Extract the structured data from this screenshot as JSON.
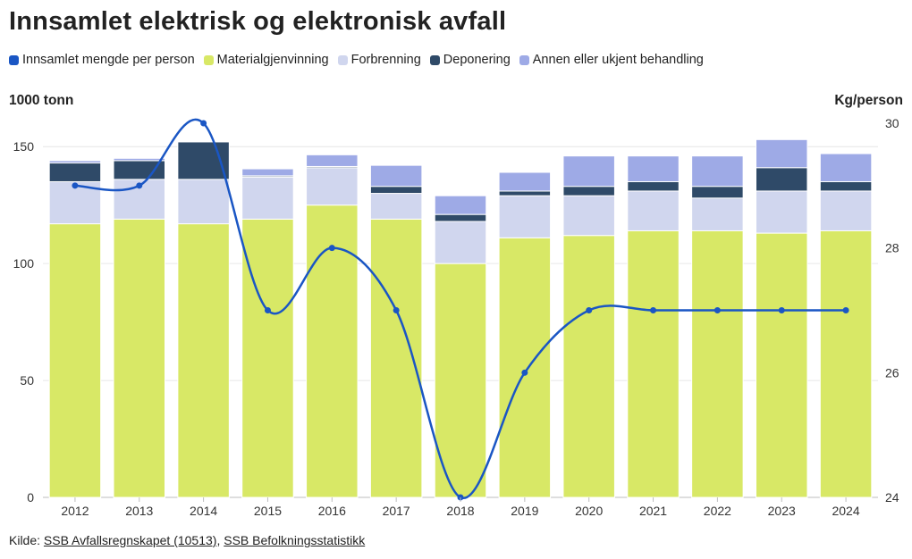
{
  "title": "Innsamlet elektrisk og elektronisk avfall",
  "source": {
    "prefix": "Kilde: ",
    "links": [
      "SSB Avfallsregnskapet (10513)",
      "SSB Befolkningsstatistikk"
    ],
    "separator": ", "
  },
  "colors": {
    "line": "#1a56c4",
    "materialgjenvinning": "#d8e866",
    "forbrenning": "#d0d6ee",
    "deponering": "#2f4a68",
    "annen": "#9eaae6"
  },
  "chart_data": {
    "type": "bar",
    "stacked": true,
    "categories": [
      "2012",
      "2013",
      "2014",
      "2015",
      "2016",
      "2017",
      "2018",
      "2019",
      "2020",
      "2021",
      "2022",
      "2023",
      "2024"
    ],
    "series": [
      {
        "name": "Materialgjenvinning",
        "color_key": "materialgjenvinning",
        "axis": "left",
        "values": [
          117,
          119,
          117,
          119,
          125,
          119,
          100,
          111,
          112,
          114,
          114,
          113,
          114
        ]
      },
      {
        "name": "Forbrenning",
        "color_key": "forbrenning",
        "axis": "left",
        "values": [
          18,
          17,
          19,
          18,
          16,
          11,
          18,
          18,
          17,
          17,
          14,
          18,
          17
        ]
      },
      {
        "name": "Deponering",
        "color_key": "deponering",
        "axis": "left",
        "values": [
          8,
          8,
          16,
          0.5,
          0.5,
          3,
          3,
          2,
          4,
          4,
          5,
          10,
          4
        ]
      },
      {
        "name": "Annen eller ukjent behandling",
        "color_key": "annen",
        "axis": "left",
        "values": [
          1,
          1,
          0,
          3,
          5,
          9,
          8,
          8,
          13,
          11,
          13,
          12,
          12
        ]
      },
      {
        "name": "Innsamlet mengde per person",
        "color_key": "line",
        "axis": "right",
        "type": "line",
        "values": [
          29,
          29,
          30,
          27,
          28,
          27,
          24,
          26,
          27,
          27,
          27,
          27,
          27
        ]
      }
    ],
    "ylabel_left": "1000 tonn",
    "ylabel_right": "Kg/person",
    "ylim_left": [
      0,
      160
    ],
    "ylim_right": [
      24,
      30
    ],
    "yticks_left": [
      0,
      50,
      100,
      150
    ],
    "yticks_right": [
      24,
      26,
      28,
      30
    ],
    "grid": true,
    "legend_position": "top-left"
  }
}
